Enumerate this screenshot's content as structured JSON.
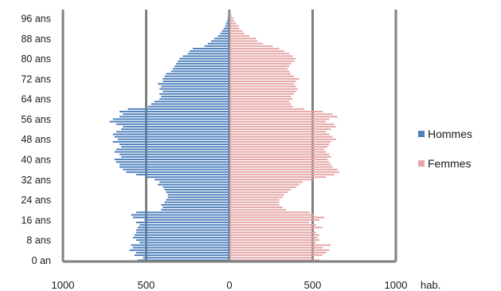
{
  "chart_data": {
    "type": "bar",
    "orientation": "horizontal",
    "subtype": "population-pyramid",
    "title": "",
    "x_unit": "hab.",
    "xlim": [
      -1000,
      1000
    ],
    "x_ticks": [
      {
        "value": -1000,
        "label": "1000"
      },
      {
        "value": -500,
        "label": "500"
      },
      {
        "value": 0,
        "label": "0"
      },
      {
        "value": 500,
        "label": "500"
      },
      {
        "value": 1000,
        "label": "1000"
      }
    ],
    "y_tick_labels": [
      {
        "age": 0,
        "label": "0 an"
      },
      {
        "age": 8,
        "label": "8 ans"
      },
      {
        "age": 16,
        "label": "16 ans"
      },
      {
        "age": 24,
        "label": "24 ans"
      },
      {
        "age": 32,
        "label": "32 ans"
      },
      {
        "age": 40,
        "label": "40 ans"
      },
      {
        "age": 48,
        "label": "48 ans"
      },
      {
        "age": 56,
        "label": "56 ans"
      },
      {
        "age": 64,
        "label": "64 ans"
      },
      {
        "age": 72,
        "label": "72 ans"
      },
      {
        "age": 80,
        "label": "80 ans"
      },
      {
        "age": 88,
        "label": "88 ans"
      },
      {
        "age": 96,
        "label": "96 ans"
      }
    ],
    "ages": [
      0,
      1,
      2,
      3,
      4,
      5,
      6,
      7,
      8,
      9,
      10,
      11,
      12,
      13,
      14,
      15,
      16,
      17,
      18,
      19,
      20,
      21,
      22,
      23,
      24,
      25,
      26,
      27,
      28,
      29,
      30,
      31,
      32,
      33,
      34,
      35,
      36,
      37,
      38,
      39,
      40,
      41,
      42,
      43,
      44,
      45,
      46,
      47,
      48,
      49,
      50,
      51,
      52,
      53,
      54,
      55,
      56,
      57,
      58,
      59,
      60,
      61,
      62,
      63,
      64,
      65,
      66,
      67,
      68,
      69,
      70,
      71,
      72,
      73,
      74,
      75,
      76,
      77,
      78,
      79,
      80,
      81,
      82,
      83,
      84,
      85,
      86,
      87,
      88,
      89,
      90,
      91,
      92,
      93,
      94,
      95,
      96,
      97,
      98,
      99
    ],
    "grid": true,
    "legend_position": "right",
    "series": [
      {
        "name": "Hommes",
        "color": "#4f81bd",
        "values": [
          550,
          520,
          570,
          560,
          600,
          580,
          590,
          540,
          560,
          580,
          570,
          560,
          560,
          550,
          540,
          560,
          510,
          580,
          590,
          560,
          410,
          400,
          410,
          390,
          380,
          370,
          370,
          380,
          390,
          400,
          430,
          420,
          450,
          500,
          560,
          620,
          640,
          660,
          660,
          680,
          690,
          650,
          660,
          690,
          680,
          650,
          660,
          700,
          670,
          690,
          700,
          680,
          650,
          640,
          680,
          720,
          700,
          660,
          640,
          660,
          610,
          490,
          470,
          450,
          420,
          410,
          420,
          400,
          420,
          410,
          430,
          400,
          400,
          390,
          380,
          350,
          340,
          330,
          320,
          310,
          300,
          280,
          250,
          240,
          220,
          150,
          130,
          110,
          90,
          70,
          55,
          45,
          35,
          25,
          20,
          15,
          10,
          5,
          3,
          2
        ]
      },
      {
        "name": "Femmes",
        "color": "#e6a6a6",
        "values": [
          540,
          500,
          560,
          580,
          600,
          560,
          610,
          520,
          540,
          530,
          540,
          520,
          500,
          560,
          520,
          480,
          540,
          570,
          510,
          480,
          340,
          320,
          300,
          300,
          300,
          320,
          330,
          350,
          370,
          400,
          420,
          440,
          500,
          580,
          630,
          660,
          650,
          620,
          610,
          600,
          590,
          610,
          600,
          580,
          570,
          590,
          600,
          610,
          640,
          620,
          600,
          580,
          610,
          640,
          630,
          580,
          600,
          650,
          620,
          560,
          450,
          380,
          370,
          360,
          380,
          370,
          390,
          400,
          410,
          400,
          390,
          400,
          420,
          390,
          370,
          360,
          350,
          360,
          370,
          390,
          400,
          380,
          360,
          330,
          300,
          260,
          200,
          170,
          160,
          120,
          90,
          80,
          60,
          55,
          40,
          30,
          25,
          15,
          10,
          5
        ]
      }
    ]
  }
}
